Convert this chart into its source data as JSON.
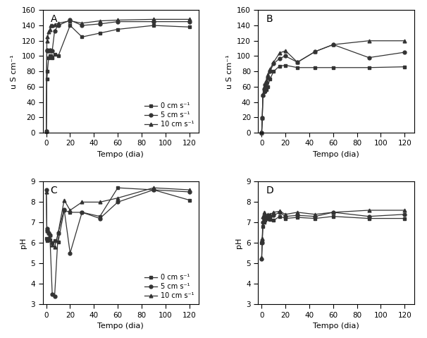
{
  "panel_A": {
    "label": "A",
    "ylabel": "u S cm⁻¹",
    "xlabel": "Tempo (dia)",
    "ylim": [
      0,
      160
    ],
    "yticks": [
      0,
      20,
      40,
      60,
      80,
      100,
      120,
      140,
      160
    ],
    "xlim": [
      -3,
      128
    ],
    "xticks": [
      0,
      20,
      40,
      60,
      80,
      100,
      120
    ],
    "series": {
      "0 cm s⁻¹": {
        "x": [
          0,
          0.5,
          1,
          2,
          3,
          4,
          5,
          7,
          10,
          20,
          30,
          45,
          60,
          90,
          120
        ],
        "y": [
          2,
          70,
          80,
          98,
          100,
          100,
          98,
          102,
          100,
          140,
          125,
          130,
          135,
          140,
          138
        ],
        "marker": "s"
      },
      "5 cm s⁻¹": {
        "x": [
          0,
          0.5,
          1,
          2,
          3,
          4,
          5,
          7,
          10,
          20,
          30,
          45,
          60,
          90,
          120
        ],
        "y": [
          2,
          107,
          108,
          107,
          108,
          107,
          107,
          133,
          140,
          147,
          140,
          142,
          145,
          145,
          145
        ],
        "marker": "o"
      },
      "10 cm s⁻¹": {
        "x": [
          0,
          0.5,
          1,
          2,
          3,
          4,
          5,
          7,
          10,
          20,
          30,
          45,
          60,
          90,
          120
        ],
        "y": [
          2,
          120,
          125,
          132,
          135,
          140,
          140,
          141,
          143,
          146,
          143,
          146,
          147,
          148,
          148
        ],
        "marker": "^"
      }
    },
    "legend_loc": "lower right",
    "legend_bbox": null
  },
  "panel_B": {
    "label": "B",
    "ylabel": "u S cm⁻¹",
    "xlabel": "Tempo (dia)",
    "ylim": [
      0,
      160
    ],
    "yticks": [
      0,
      20,
      40,
      60,
      80,
      100,
      120,
      140,
      160
    ],
    "xlim": [
      -3,
      128
    ],
    "xticks": [
      0,
      20,
      40,
      60,
      80,
      100,
      120
    ],
    "series": {
      "0 cm s⁻¹": {
        "x": [
          0,
          0.5,
          1,
          2,
          3,
          4,
          5,
          7,
          10,
          15,
          20,
          30,
          45,
          60,
          90,
          120
        ],
        "y": [
          0,
          19,
          49,
          53,
          54,
          56,
          60,
          70,
          80,
          87,
          88,
          85,
          85,
          85,
          85,
          86
        ],
        "marker": "s"
      },
      "5 cm s⁻¹": {
        "x": [
          0,
          0.5,
          1,
          2,
          3,
          4,
          5,
          7,
          10,
          15,
          20,
          30,
          45,
          60,
          90,
          120
        ],
        "y": [
          0,
          19,
          49,
          57,
          63,
          65,
          72,
          80,
          90,
          97,
          100,
          92,
          106,
          115,
          98,
          105
        ],
        "marker": "o"
      },
      "10 cm s⁻¹": {
        "x": [
          0,
          0.5,
          1,
          2,
          3,
          4,
          5,
          7,
          10,
          15,
          20,
          30,
          45,
          60,
          90,
          120
        ],
        "y": [
          0,
          19,
          50,
          58,
          62,
          68,
          76,
          83,
          92,
          104,
          107,
          92,
          106,
          115,
          120,
          120
        ],
        "marker": "^"
      }
    },
    "legend_loc": null,
    "legend_bbox": null
  },
  "panel_C": {
    "label": "C",
    "ylabel": "pH",
    "xlabel": "Tempo (dia)",
    "ylim": [
      3,
      9
    ],
    "yticks": [
      3,
      4,
      5,
      6,
      7,
      8,
      9
    ],
    "xlim": [
      -3,
      128
    ],
    "xticks": [
      0,
      20,
      40,
      60,
      80,
      100,
      120
    ],
    "series": {
      "0 cm s⁻¹": {
        "x": [
          0,
          0.5,
          1,
          2,
          3,
          5,
          7,
          10,
          15,
          20,
          30,
          45,
          60,
          90,
          120
        ],
        "y": [
          6.2,
          6.1,
          6.15,
          6.2,
          6.15,
          6.0,
          6.1,
          6.05,
          7.6,
          7.5,
          7.5,
          7.3,
          8.7,
          8.6,
          8.1
        ],
        "marker": "s"
      },
      "5 cm s⁻¹": {
        "x": [
          0,
          0.5,
          1,
          2,
          3,
          5,
          7,
          10,
          15,
          20,
          30,
          45,
          60,
          90,
          120
        ],
        "y": [
          8.6,
          6.6,
          6.7,
          6.5,
          6.4,
          3.5,
          3.4,
          6.5,
          7.65,
          5.5,
          7.5,
          7.2,
          8.0,
          8.6,
          8.5
        ],
        "marker": "o"
      },
      "10 cm s⁻¹": {
        "x": [
          0,
          0.5,
          1,
          2,
          3,
          5,
          7,
          10,
          15,
          20,
          30,
          45,
          60,
          90,
          120
        ],
        "y": [
          8.5,
          6.6,
          6.7,
          6.5,
          6.4,
          5.9,
          5.8,
          6.5,
          8.1,
          7.6,
          8.0,
          8.0,
          8.2,
          8.7,
          8.6
        ],
        "marker": "^"
      }
    },
    "legend_loc": "lower right",
    "legend_bbox": null
  },
  "panel_D": {
    "label": "D",
    "ylabel": "pH",
    "xlabel": "Tempo (dia)",
    "ylim": [
      3,
      9
    ],
    "yticks": [
      3,
      4,
      5,
      6,
      7,
      8,
      9
    ],
    "xlim": [
      -3,
      128
    ],
    "xticks": [
      0,
      20,
      40,
      60,
      80,
      100,
      120
    ],
    "series": {
      "0 cm s⁻¹": {
        "x": [
          0,
          0.5,
          1,
          2,
          3,
          5,
          7,
          10,
          15,
          20,
          30,
          45,
          60,
          90,
          120
        ],
        "y": [
          6.0,
          6.1,
          6.8,
          7.0,
          7.1,
          7.2,
          7.15,
          7.1,
          7.3,
          7.2,
          7.25,
          7.2,
          7.3,
          7.2,
          7.2
        ],
        "marker": "s"
      },
      "5 cm s⁻¹": {
        "x": [
          0,
          0.5,
          1,
          2,
          3,
          5,
          7,
          10,
          15,
          20,
          30,
          45,
          60,
          90,
          120
        ],
        "y": [
          5.2,
          6.0,
          7.0,
          7.2,
          7.3,
          7.3,
          7.3,
          7.35,
          7.5,
          7.3,
          7.35,
          7.3,
          7.5,
          7.3,
          7.4
        ],
        "marker": "o"
      },
      "10 cm s⁻¹": {
        "x": [
          0,
          0.5,
          1,
          2,
          3,
          5,
          7,
          10,
          15,
          20,
          30,
          45,
          60,
          90,
          120
        ],
        "y": [
          5.3,
          6.2,
          7.3,
          7.5,
          7.4,
          7.4,
          7.4,
          7.5,
          7.55,
          7.4,
          7.5,
          7.4,
          7.5,
          7.6,
          7.6
        ],
        "marker": "^"
      }
    },
    "legend_loc": null,
    "legend_bbox": null
  },
  "line_color": "#333333",
  "marker_size": 3.5,
  "line_width": 0.9,
  "legend_fontsize": 7,
  "axis_fontsize": 8,
  "tick_fontsize": 7.5,
  "label_fontsize": 10,
  "bg_color": "#f0f0f0"
}
